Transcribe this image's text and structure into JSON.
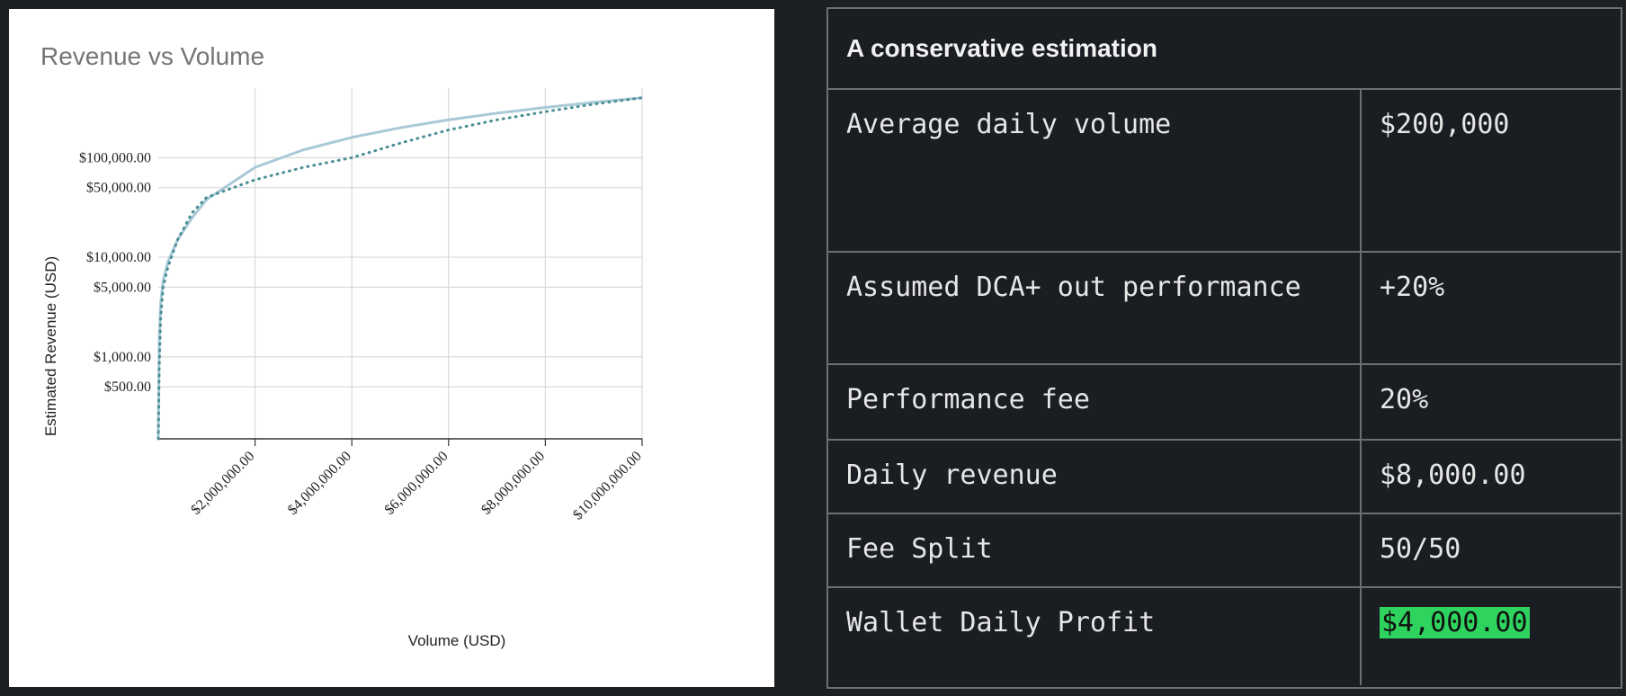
{
  "chart_data": {
    "type": "line",
    "title": "Revenue vs Volume",
    "xlabel": "Volume (USD)",
    "ylabel": "Estimated Revenue (USD)",
    "y_scale": "log",
    "grid": true,
    "xlim": [
      0,
      10000000
    ],
    "ylim": [
      150,
      500000
    ],
    "x_ticks": [
      {
        "value": 2000000,
        "label": "$2,000,000.00"
      },
      {
        "value": 4000000,
        "label": "$4,000,000.00"
      },
      {
        "value": 6000000,
        "label": "$6,000,000.00"
      },
      {
        "value": 8000000,
        "label": "$8,000,000.00"
      },
      {
        "value": 10000000,
        "label": "$10,000,000.00"
      }
    ],
    "y_ticks": [
      {
        "value": 500,
        "label": "$500.00"
      },
      {
        "value": 1000,
        "label": "$1,000.00"
      },
      {
        "value": 5000,
        "label": "$5,000.00"
      },
      {
        "value": 10000,
        "label": "$10,000.00"
      },
      {
        "value": 50000,
        "label": "$50,000.00"
      },
      {
        "value": 100000,
        "label": "$100,000.00"
      }
    ],
    "series": [
      {
        "style": "solid",
        "color": "#a9c9d6",
        "x": [
          0,
          20000,
          50000,
          100000,
          200000,
          400000,
          700000,
          1000000,
          2000000,
          3000000,
          4000000,
          5000000,
          6000000,
          7000000,
          8000000,
          9000000,
          10000000
        ],
        "y": [
          150,
          1500,
          3500,
          5800,
          9000,
          15000,
          25000,
          38000,
          80000,
          120000,
          160000,
          200000,
          240000,
          280000,
          320000,
          360000,
          400000
        ]
      },
      {
        "style": "dotted",
        "color": "#4a8f96",
        "x": [
          0,
          20000,
          50000,
          100000,
          200000,
          400000,
          700000,
          1000000,
          2000000,
          3000000,
          4000000,
          5000000,
          6000000,
          7000000,
          8000000,
          9000000,
          10000000
        ],
        "y": [
          150,
          800,
          2500,
          5000,
          8000,
          15000,
          28000,
          40000,
          60000,
          80000,
          100000,
          140000,
          190000,
          240000,
          290000,
          345000,
          400000
        ]
      }
    ]
  },
  "table": {
    "title": "A conservative estimation",
    "rows": [
      {
        "label": "Average daily volume",
        "value": "$200,000"
      },
      {
        "label": "Assumed DCA+ out performance",
        "value": "+20%"
      },
      {
        "label": "Performance fee",
        "value": "20%"
      },
      {
        "label": "Daily revenue",
        "value": "$8,000.00"
      },
      {
        "label": "Fee Split",
        "value": "50/50"
      },
      {
        "label": "Wallet Daily Profit",
        "value": "$4,000.00",
        "highlight_color": "#2fd45f"
      }
    ]
  }
}
